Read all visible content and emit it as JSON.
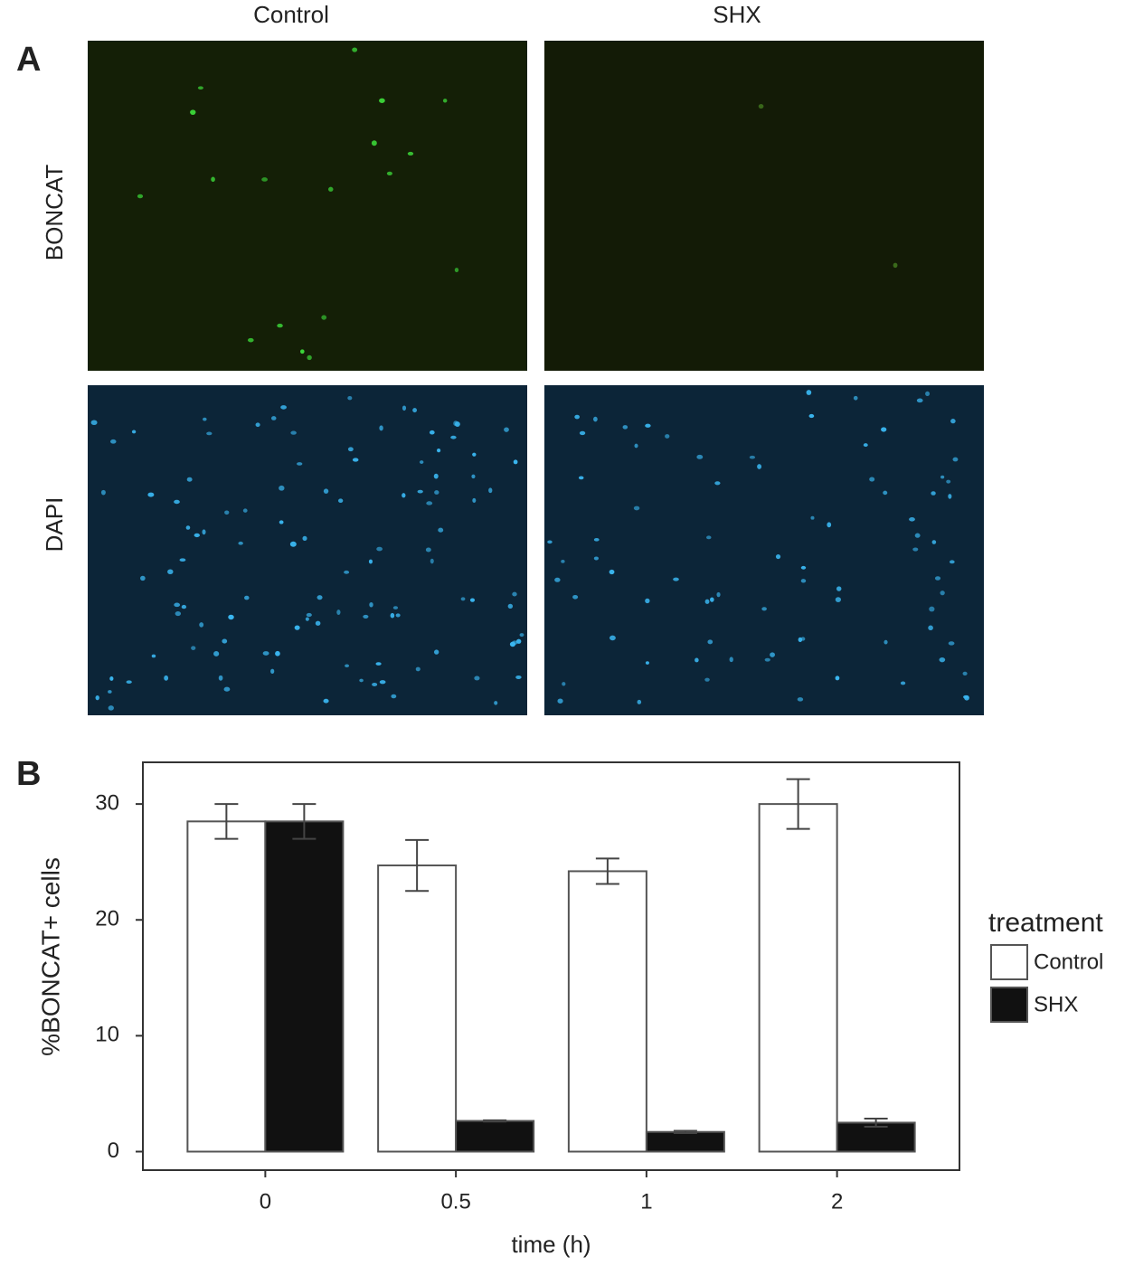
{
  "panel_a": {
    "label": "A",
    "columns": [
      "Control",
      "SHX"
    ],
    "rows": [
      "BONCAT",
      "DAPI"
    ]
  },
  "panel_b": {
    "label": "B"
  },
  "chart_data": {
    "type": "bar",
    "categories": [
      "0",
      "0.5",
      "1",
      "2"
    ],
    "series": [
      {
        "name": "Control",
        "color": "#ffffff",
        "values": [
          28.5,
          24.7,
          24.2,
          30.0
        ],
        "errors": [
          1.5,
          2.2,
          1.1,
          2.15
        ]
      },
      {
        "name": "SHX",
        "color": "#111111",
        "values": [
          28.5,
          2.65,
          1.7,
          2.5
        ],
        "errors": [
          1.5,
          0.05,
          0.1,
          0.35
        ]
      }
    ],
    "ylim": [
      -1.6,
      33.6
    ],
    "yticks": [
      0,
      10,
      20,
      30
    ],
    "xlabel": "time (h)",
    "ylabel": "%BONCAT+ cells",
    "legend_title": "treatment",
    "legend_position": "right",
    "grid": false
  }
}
